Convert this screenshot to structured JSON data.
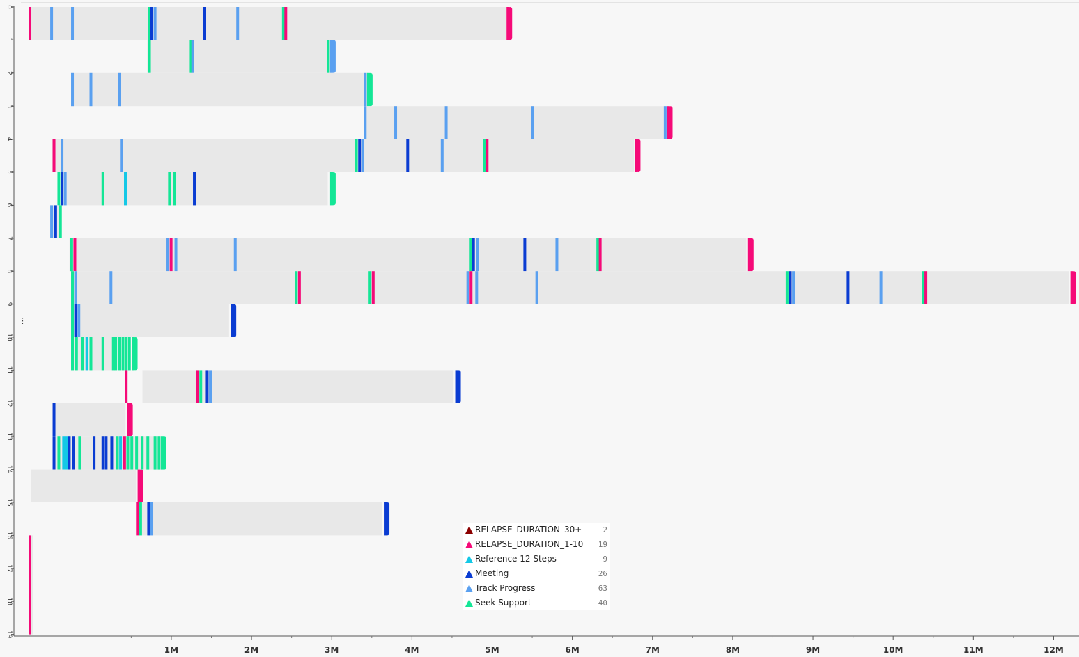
{
  "chart_data": {
    "type": "timeline",
    "x_ticks": [
      {
        "label": "1M",
        "value": 1000000
      },
      {
        "label": "2M",
        "value": 2000000
      },
      {
        "label": "3M",
        "value": 3000000
      },
      {
        "label": "4M",
        "value": 4000000
      },
      {
        "label": "5M",
        "value": 5000000
      },
      {
        "label": "6M",
        "value": 6000000
      },
      {
        "label": "7M",
        "value": 7000000
      },
      {
        "label": "8M",
        "value": 8000000
      },
      {
        "label": "9M",
        "value": 9000000
      },
      {
        "label": "10M",
        "value": 10000000
      },
      {
        "label": "11M",
        "value": 11000000
      },
      {
        "label": "12M",
        "value": 12000000
      }
    ],
    "xlim": [
      -780000,
      12300000
    ],
    "y_ticks": [
      "0",
      "1",
      "2",
      "3",
      "4",
      "5",
      "6",
      "7",
      "8",
      "9",
      "10",
      "11",
      "12",
      "13",
      "14",
      "15",
      "16",
      "17",
      "18",
      "19"
    ],
    "ylim": [
      0,
      19
    ],
    "grid": false,
    "legend_position": "bottom-center",
    "categories": [
      {
        "key": "relapse_30",
        "label": "RELAPSE_DURATION_30+",
        "count": "2",
        "color": "#8b0000"
      },
      {
        "key": "relapse_1_10",
        "label": "RELAPSE_DURATION_1-10",
        "count": "19",
        "color": "#f50a78"
      },
      {
        "key": "reference",
        "label": "Reference 12 Steps",
        "count": "9",
        "color": "#14c8e6"
      },
      {
        "key": "meeting",
        "label": "Meeting",
        "count": "26",
        "color": "#0a3cd2"
      },
      {
        "key": "track",
        "label": "Track Progress",
        "count": "63",
        "color": "#5aa0f0"
      },
      {
        "key": "support",
        "label": "Seek Support",
        "count": "40",
        "color": "#14e696"
      }
    ],
    "bars": [
      {
        "row": [
          0,
          1
        ],
        "start": -750000,
        "end": 5180000,
        "events": [
          [
            -780000,
            "relapse_1_10"
          ],
          [
            -510000,
            "track"
          ],
          [
            -250000,
            "track"
          ],
          [
            710000,
            "support"
          ],
          [
            740000,
            "meeting"
          ],
          [
            780000,
            "track"
          ],
          [
            1400000,
            "meeting"
          ],
          [
            1810000,
            "track"
          ],
          [
            2380000,
            "support"
          ],
          [
            2410000,
            "relapse_1_10"
          ],
          [
            5180000,
            "relapse_1_10"
          ]
        ]
      },
      {
        "row": [
          1,
          2
        ],
        "start": 700000,
        "end": 2990000,
        "events": [
          [
            710000,
            "support"
          ],
          [
            1230000,
            "support"
          ],
          [
            1250000,
            "track"
          ],
          [
            2940000,
            "support"
          ],
          [
            2980000,
            "track"
          ]
        ]
      },
      {
        "row": [
          2,
          3
        ],
        "start": -250000,
        "end": 3450000,
        "events": [
          [
            -250000,
            "track"
          ],
          [
            -20000,
            "track"
          ],
          [
            340000,
            "track"
          ],
          [
            3400000,
            "track"
          ],
          [
            3440000,
            "support"
          ]
        ]
      },
      {
        "row": [
          3,
          4
        ],
        "start": 3400000,
        "end": 7160000,
        "events": [
          [
            3400000,
            "track"
          ],
          [
            3780000,
            "track"
          ],
          [
            4410000,
            "track"
          ],
          [
            5490000,
            "track"
          ],
          [
            7140000,
            "track"
          ],
          [
            7180000,
            "relapse_1_10"
          ]
        ]
      },
      {
        "row": [
          4,
          5
        ],
        "start": -490000,
        "end": 6770000,
        "events": [
          [
            -480000,
            "relapse_1_10"
          ],
          [
            -380000,
            "track"
          ],
          [
            360000,
            "track"
          ],
          [
            3290000,
            "support"
          ],
          [
            3330000,
            "meeting"
          ],
          [
            3370000,
            "track"
          ],
          [
            3930000,
            "meeting"
          ],
          [
            4360000,
            "track"
          ],
          [
            4890000,
            "support"
          ],
          [
            4920000,
            "relapse_1_10"
          ],
          [
            6780000,
            "relapse_1_10"
          ]
        ]
      },
      {
        "row": [
          5,
          6
        ],
        "start": -380000,
        "end": 2950000,
        "events": [
          [
            -420000,
            "support"
          ],
          [
            -380000,
            "meeting"
          ],
          [
            -340000,
            "track"
          ],
          [
            130000,
            "support"
          ],
          [
            410000,
            "reference"
          ],
          [
            960000,
            "support"
          ],
          [
            1020000,
            "support"
          ],
          [
            1270000,
            "meeting"
          ],
          [
            2980000,
            "support"
          ]
        ]
      },
      {
        "row": [
          6,
          7
        ],
        "start": -510000,
        "end": -370000,
        "events": [
          [
            -510000,
            "track"
          ],
          [
            -460000,
            "meeting"
          ],
          [
            -400000,
            "support"
          ]
        ]
      },
      {
        "row": [
          7,
          8
        ],
        "start": -270000,
        "end": 8170000,
        "events": [
          [
            -260000,
            "support"
          ],
          [
            -220000,
            "relapse_1_10"
          ],
          [
            940000,
            "track"
          ],
          [
            980000,
            "relapse_1_10"
          ],
          [
            1040000,
            "track"
          ],
          [
            1780000,
            "track"
          ],
          [
            4720000,
            "support"
          ],
          [
            4750000,
            "meeting"
          ],
          [
            4800000,
            "track"
          ],
          [
            5390000,
            "meeting"
          ],
          [
            5790000,
            "track"
          ],
          [
            6300000,
            "support"
          ],
          [
            6330000,
            "relapse_1_10"
          ],
          [
            8190000,
            "relapse_1_10"
          ]
        ]
      },
      {
        "row": [
          8,
          9
        ],
        "start": -220000,
        "end": 12190000,
        "events": [
          [
            -250000,
            "support"
          ],
          [
            -210000,
            "track"
          ],
          [
            230000,
            "track"
          ],
          [
            2540000,
            "support"
          ],
          [
            2580000,
            "relapse_1_10"
          ],
          [
            3460000,
            "support"
          ],
          [
            3500000,
            "relapse_1_10"
          ],
          [
            4680000,
            "track"
          ],
          [
            4720000,
            "relapse_1_10"
          ],
          [
            4790000,
            "track"
          ],
          [
            5540000,
            "track"
          ],
          [
            8660000,
            "support"
          ],
          [
            8700000,
            "meeting"
          ],
          [
            8740000,
            "track"
          ],
          [
            9420000,
            "meeting"
          ],
          [
            9830000,
            "track"
          ],
          [
            10360000,
            "support"
          ],
          [
            10390000,
            "relapse_1_10"
          ],
          [
            12210000,
            "relapse_1_10"
          ]
        ]
      },
      {
        "row": [
          9,
          10
        ],
        "start": -210000,
        "end": 1720000,
        "events": [
          [
            -250000,
            "support"
          ],
          [
            -210000,
            "meeting"
          ],
          [
            -170000,
            "track"
          ],
          [
            1740000,
            "meeting"
          ]
        ]
      },
      {
        "row": [
          10,
          11
        ],
        "start": -250000,
        "end": 270000,
        "events": [
          [
            -250000,
            "support"
          ],
          [
            -200000,
            "support"
          ],
          [
            -120000,
            "support"
          ],
          [
            -70000,
            "reference"
          ],
          [
            -20000,
            "support"
          ],
          [
            130000,
            "support"
          ],
          [
            260000,
            "support"
          ],
          [
            290000,
            "support"
          ],
          [
            340000,
            "support"
          ],
          [
            380000,
            "support"
          ],
          [
            420000,
            "support"
          ],
          [
            460000,
            "support"
          ],
          [
            510000,
            "support"
          ]
        ]
      },
      {
        "row": [
          11,
          12
        ],
        "start": 640000,
        "end": 4520000,
        "events": [
          [
            420000,
            "relapse_1_10"
          ],
          [
            1310000,
            "relapse_1_10"
          ],
          [
            1350000,
            "support"
          ],
          [
            1430000,
            "meeting"
          ],
          [
            1470000,
            "track"
          ],
          [
            4540000,
            "meeting"
          ]
        ]
      },
      {
        "row": [
          12,
          13
        ],
        "start": -480000,
        "end": 430000,
        "events": [
          [
            -480000,
            "meeting"
          ],
          [
            450000,
            "relapse_1_10"
          ]
        ]
      },
      {
        "row": [
          13,
          14
        ],
        "start": -480000,
        "end": 870000,
        "events": [
          [
            -480000,
            "meeting"
          ],
          [
            -420000,
            "support"
          ],
          [
            -360000,
            "reference"
          ],
          [
            -320000,
            "reference"
          ],
          [
            -290000,
            "meeting"
          ],
          [
            -240000,
            "meeting"
          ],
          [
            -160000,
            "support"
          ],
          [
            20000,
            "meeting"
          ],
          [
            130000,
            "meeting"
          ],
          [
            170000,
            "meeting"
          ],
          [
            240000,
            "meeting"
          ],
          [
            310000,
            "support"
          ],
          [
            350000,
            "reference"
          ],
          [
            400000,
            "relapse_1_10"
          ],
          [
            440000,
            "support"
          ],
          [
            490000,
            "support"
          ],
          [
            550000,
            "support"
          ],
          [
            620000,
            "support"
          ],
          [
            690000,
            "support"
          ],
          [
            780000,
            "support"
          ],
          [
            830000,
            "support"
          ],
          [
            870000,
            "support"
          ]
        ]
      },
      {
        "row": [
          14,
          15
        ],
        "start": -750000,
        "end": 560000,
        "events": [
          [
            580000,
            "relapse_1_10"
          ]
        ]
      },
      {
        "row": [
          15,
          16
        ],
        "start": 620000,
        "end": 3630000,
        "events": [
          [
            560000,
            "relapse_1_10"
          ],
          [
            600000,
            "support"
          ],
          [
            700000,
            "meeting"
          ],
          [
            740000,
            "track"
          ],
          [
            3650000,
            "meeting"
          ]
        ]
      },
      {
        "row": [
          16,
          19
        ],
        "start": -780000,
        "end": -720000,
        "events": [
          [
            -780000,
            "relapse_1_10"
          ]
        ]
      }
    ]
  }
}
